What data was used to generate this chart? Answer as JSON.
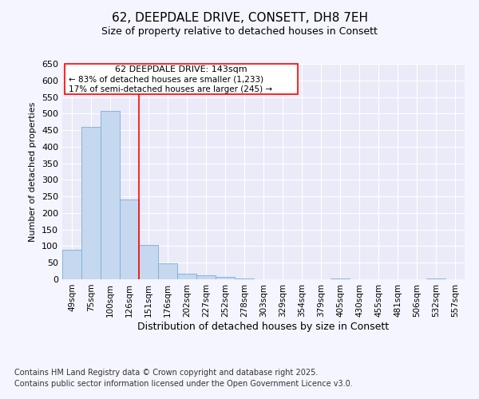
{
  "title": "62, DEEPDALE DRIVE, CONSETT, DH8 7EH",
  "subtitle": "Size of property relative to detached houses in Consett",
  "xlabel": "Distribution of detached houses by size in Consett",
  "ylabel": "Number of detached properties",
  "categories": [
    "49sqm",
    "75sqm",
    "100sqm",
    "126sqm",
    "151sqm",
    "176sqm",
    "202sqm",
    "227sqm",
    "252sqm",
    "278sqm",
    "303sqm",
    "329sqm",
    "354sqm",
    "379sqm",
    "405sqm",
    "430sqm",
    "455sqm",
    "481sqm",
    "506sqm",
    "532sqm",
    "557sqm"
  ],
  "values": [
    88,
    460,
    508,
    240,
    104,
    47,
    17,
    12,
    8,
    2,
    0,
    0,
    0,
    0,
    2,
    0,
    0,
    0,
    0,
    2,
    0
  ],
  "bar_color": "#c5d8f0",
  "bar_edge_color": "#7aadd4",
  "red_line_index": 4.0,
  "annotation_title": "62 DEEPDALE DRIVE: 143sqm",
  "annotation_line1": "← 83% of detached houses are smaller (1,233)",
  "annotation_line2": "17% of semi-detached houses are larger (245) →",
  "footer_line1": "Contains HM Land Registry data © Crown copyright and database right 2025.",
  "footer_line2": "Contains public sector information licensed under the Open Government Licence v3.0.",
  "ylim": [
    0,
    650
  ],
  "yticks": [
    0,
    50,
    100,
    150,
    200,
    250,
    300,
    350,
    400,
    450,
    500,
    550,
    600,
    650
  ],
  "background_color": "#f5f5ff",
  "plot_background": "#eaeaf8",
  "grid_color": "#ffffff"
}
